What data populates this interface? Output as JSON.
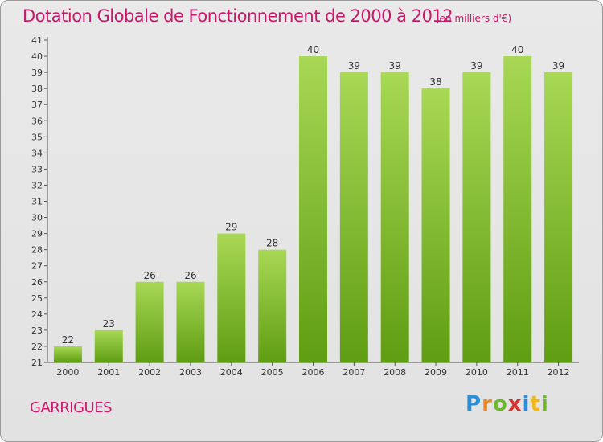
{
  "title": "Dotation Globale de Fonctionnement de 2000 à 2012",
  "subtitle": "(en milliers d'€)",
  "commune": "GARRIGUES",
  "logo_text": "Proxiti",
  "colors": {
    "title": "#c8186a",
    "bar_light": "#a8d855",
    "bar_dark": "#5f9d12",
    "logo_p": "#2a8fd8",
    "logo_r": "#f18a1c",
    "logo_o": "#6fb530",
    "logo_x": "#d6322e",
    "logo_t": "#f2b818"
  },
  "chart_data": {
    "type": "bar",
    "categories": [
      "2000",
      "2001",
      "2002",
      "2003",
      "2004",
      "2005",
      "2006",
      "2007",
      "2008",
      "2009",
      "2010",
      "2011",
      "2012"
    ],
    "values": [
      22,
      23,
      26,
      26,
      29,
      28,
      40,
      39,
      39,
      38,
      39,
      40,
      39
    ],
    "title": "Dotation Globale de Fonctionnement de 2000 à 2012",
    "subtitle": "(en milliers d'€)",
    "xlabel": "",
    "ylabel": "",
    "ylim": [
      21,
      41
    ],
    "yticks": [
      21,
      22,
      23,
      24,
      25,
      26,
      27,
      28,
      29,
      30,
      31,
      32,
      33,
      34,
      35,
      36,
      37,
      38,
      39,
      40,
      41
    ],
    "grid": false,
    "data_labels": true
  }
}
